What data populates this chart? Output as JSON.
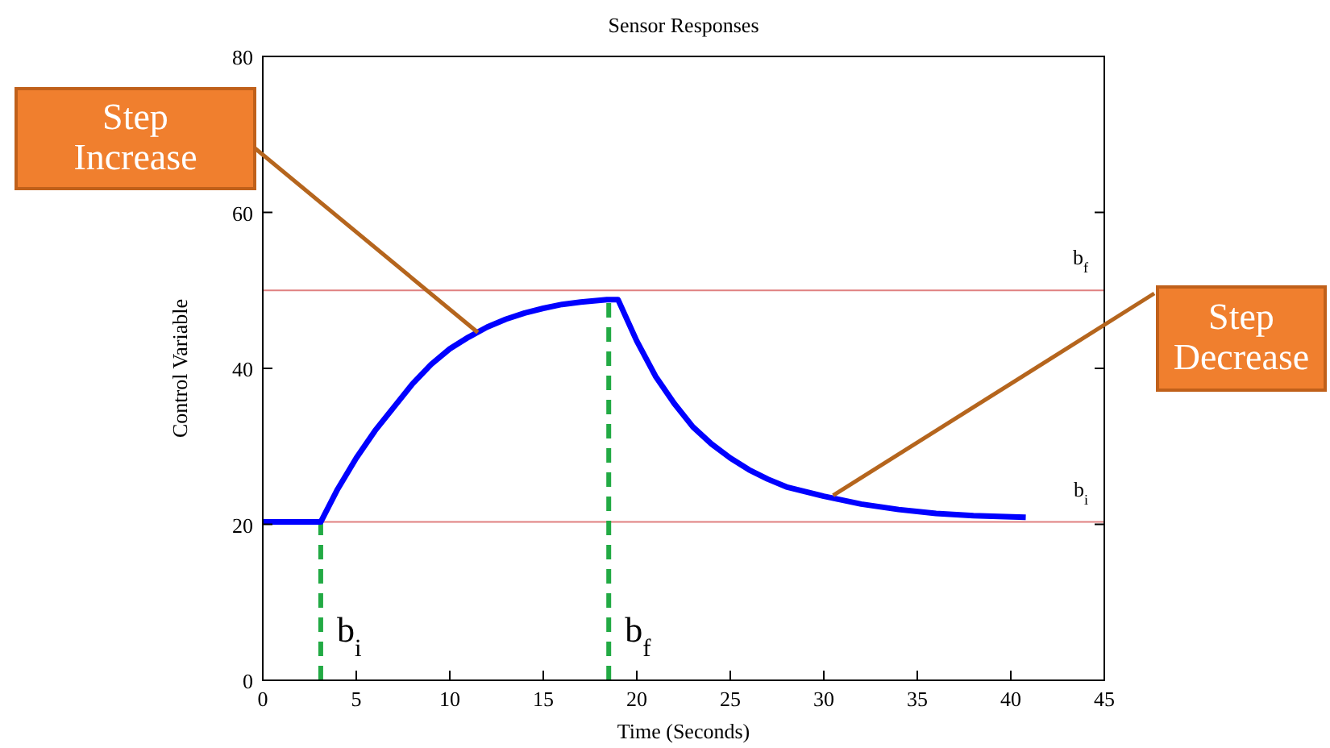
{
  "chart_data": {
    "type": "line",
    "title": "Sensor Responses",
    "xlabel": "Time (Seconds)",
    "ylabel": "Control Variable",
    "xlim": [
      0,
      45
    ],
    "xticks": [
      0,
      5,
      10,
      15,
      20,
      25,
      30,
      35,
      40,
      45
    ],
    "ylim": [
      0,
      80
    ],
    "yticks": [
      0,
      20,
      40,
      60,
      80
    ],
    "grid": false,
    "marker": "none",
    "line_style": "solid",
    "series": [
      {
        "color": "#0000ff",
        "x": [
          0,
          3.1,
          4,
          5,
          6,
          7,
          8,
          9,
          10,
          11,
          12,
          13,
          14,
          15,
          16,
          17,
          18.4,
          19,
          20,
          21,
          22,
          23,
          24,
          25,
          26,
          27,
          28,
          29,
          30,
          32,
          34,
          36,
          38,
          40.8
        ],
        "values": [
          20.3,
          20.3,
          24.5,
          28.5,
          32,
          35,
          38,
          40.5,
          42.5,
          44,
          45.3,
          46.3,
          47.1,
          47.7,
          48.2,
          48.5,
          48.8,
          48.8,
          43.5,
          39,
          35.5,
          32.5,
          30.3,
          28.5,
          27,
          25.8,
          24.8,
          24.2,
          23.6,
          22.6,
          21.9,
          21.4,
          21.1,
          20.9
        ]
      }
    ],
    "ref_lines": [
      {
        "axis": "y",
        "value": 50,
        "label": "b$_{f}$",
        "color": "#e08080",
        "line_style": "solid"
      },
      {
        "axis": "y",
        "value": 20.3,
        "label": "b$_{i}$",
        "color": "#e08080",
        "line_style": "solid"
      },
      {
        "axis": "x",
        "value": 3.1,
        "label": "b$_{i}$",
        "color": "#22aa44",
        "line_style": "dashed"
      },
      {
        "axis": "x",
        "value": 18.5,
        "label": "b$_{f}$",
        "color": "#22aa44",
        "line_style": "dashed"
      }
    ],
    "annotations": [
      {
        "text": "Step Increase",
        "x": 11.5,
        "y": 44.6
      },
      {
        "text": "Step Decrease",
        "x": 30.5,
        "y": 23.7
      }
    ]
  }
}
